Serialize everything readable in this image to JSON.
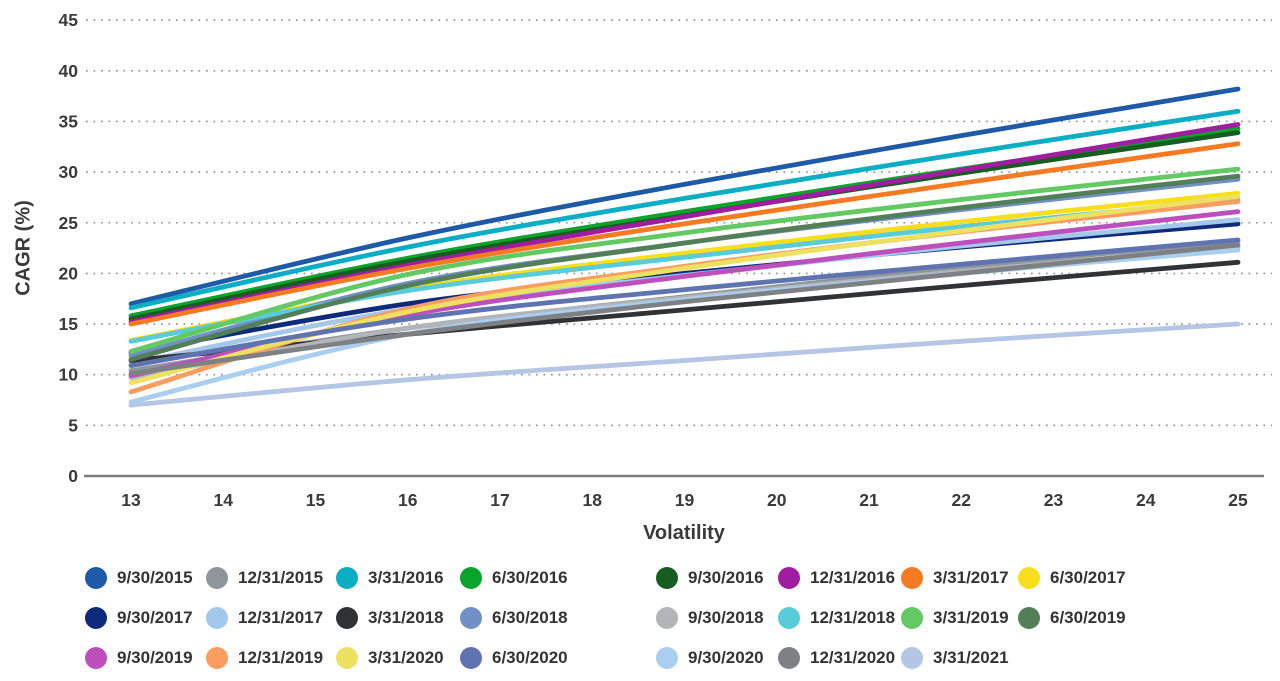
{
  "axes": {
    "x_title": "Volatility",
    "y_title": "CAGR (%)"
  },
  "chart_data": {
    "type": "line",
    "title": "",
    "xlabel": "Volatility",
    "ylabel": "CAGR (%)",
    "xlim": [
      13,
      25
    ],
    "ylim": [
      0,
      45
    ],
    "x_ticks": [
      13,
      14,
      15,
      16,
      17,
      18,
      19,
      20,
      21,
      22,
      23,
      24,
      25
    ],
    "y_ticks": [
      0,
      5,
      10,
      15,
      20,
      25,
      30,
      35,
      40,
      45
    ],
    "grid": "dotted-horizontal",
    "legend_position": "bottom",
    "legend_row_breaks": [
      8,
      8,
      7
    ],
    "x_sample": [
      13,
      16,
      19,
      22,
      25
    ],
    "series": [
      {
        "name": "9/30/2015",
        "color": "#1E5AA8",
        "values": [
          17.0,
          23.5,
          28.8,
          33.6,
          38.2
        ]
      },
      {
        "name": "12/31/2015",
        "color": "#8E959C",
        "values": [
          10.4,
          14.6,
          17.7,
          20.6,
          23.2
        ]
      },
      {
        "name": "3/31/2016",
        "color": "#0AAEC4",
        "values": [
          16.6,
          22.6,
          27.4,
          31.8,
          36.0
        ]
      },
      {
        "name": "6/30/2016",
        "color": "#0AA32B",
        "values": [
          15.8,
          21.5,
          26.1,
          30.3,
          34.3
        ]
      },
      {
        "name": "9/30/2016",
        "color": "#175C21",
        "values": [
          15.5,
          21.2,
          25.7,
          29.9,
          33.9
        ]
      },
      {
        "name": "12/31/2016",
        "color": "#A01CA0",
        "values": [
          15.2,
          20.8,
          25.6,
          30.2,
          34.7
        ]
      },
      {
        "name": "3/31/2017",
        "color": "#F57A22",
        "values": [
          15.0,
          20.5,
          24.9,
          28.9,
          32.8
        ]
      },
      {
        "name": "6/30/2017",
        "color": "#F8DE1B",
        "values": [
          13.4,
          18.5,
          22.0,
          25.1,
          27.9
        ]
      },
      {
        "name": "9/30/2017",
        "color": "#0E2B7B",
        "values": [
          12.2,
          17.0,
          20.0,
          22.6,
          24.9
        ]
      },
      {
        "name": "12/31/2017",
        "color": "#A4C8EB",
        "values": [
          11.1,
          16.5,
          19.8,
          22.7,
          25.3
        ]
      },
      {
        "name": "3/31/2018",
        "color": "#303234",
        "values": [
          11.4,
          14.0,
          16.4,
          18.8,
          21.1
        ]
      },
      {
        "name": "6/30/2018",
        "color": "#7090C6",
        "values": [
          11.9,
          19.0,
          23.0,
          26.3,
          29.3
        ]
      },
      {
        "name": "9/30/2018",
        "color": "#B1B4B9",
        "values": [
          9.7,
          14.6,
          17.6,
          20.2,
          22.6
        ]
      },
      {
        "name": "12/31/2018",
        "color": "#59CBD9",
        "values": [
          13.3,
          18.3,
          21.6,
          24.6,
          27.3
        ]
      },
      {
        "name": "3/31/2019",
        "color": "#63C963",
        "values": [
          12.3,
          19.9,
          24.0,
          27.3,
          30.3
        ]
      },
      {
        "name": "6/30/2019",
        "color": "#537F58",
        "values": [
          11.5,
          18.8,
          23.0,
          26.5,
          29.6
        ]
      },
      {
        "name": "9/30/2019",
        "color": "#BD4FBD",
        "values": [
          9.9,
          15.9,
          19.7,
          23.0,
          26.1
        ]
      },
      {
        "name": "12/31/2019",
        "color": "#FB9C60",
        "values": [
          8.3,
          16.5,
          20.7,
          24.1,
          27.1
        ]
      },
      {
        "name": "3/31/2020",
        "color": "#EDE161",
        "values": [
          9.2,
          16.2,
          20.5,
          24.2,
          27.6
        ]
      },
      {
        "name": "6/30/2020",
        "color": "#5F73B1",
        "values": [
          10.9,
          15.5,
          18.4,
          20.9,
          23.3
        ]
      },
      {
        "name": "9/30/2020",
        "color": "#A9CEF0",
        "values": [
          7.3,
          14.0,
          17.4,
          20.0,
          22.3
        ]
      },
      {
        "name": "12/31/2020",
        "color": "#7E8184",
        "values": [
          10.1,
          14.0,
          17.2,
          20.0,
          22.8
        ]
      },
      {
        "name": "3/31/2021",
        "color": "#B5C5E5",
        "values": [
          7.0,
          9.5,
          11.4,
          13.3,
          15.0
        ]
      }
    ]
  },
  "style_colors": {
    "grid_dots": "#8F8F8F",
    "axis_line": "#7C7C7C",
    "tick_text": "#3a3a3a"
  }
}
